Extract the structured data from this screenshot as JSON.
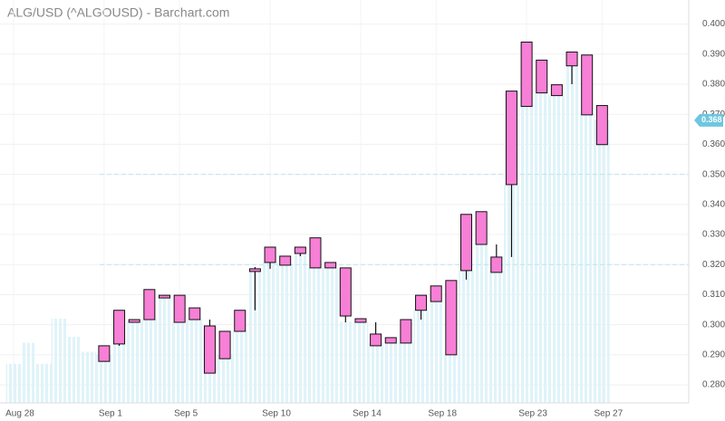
{
  "chart_data": {
    "type": "candlestick",
    "title": "ALG/USD (^ALGOUSD) - Barchart.com",
    "categories": [
      "Aug 28",
      null,
      null,
      null,
      null,
      null,
      "Sep 1",
      null,
      null,
      null,
      null,
      "Sep 5",
      null,
      null,
      null,
      null,
      null,
      "Sep 10",
      null,
      null,
      null,
      null,
      null,
      "Sep 14",
      null,
      null,
      null,
      null,
      "Sep 18",
      null,
      null,
      null,
      null,
      null,
      "Sep 23",
      null,
      null,
      null,
      null,
      "Sep 27"
    ],
    "open": [
      null,
      null,
      null,
      null,
      null,
      null,
      0.293,
      0.2936,
      0.3008,
      0.3017,
      0.3089,
      0.3098,
      0.3056,
      0.2996,
      0.2887,
      0.2978,
      0.3177,
      0.3207,
      0.3228,
      0.3237,
      0.3289,
      0.3207,
      0.3189,
      0.302,
      0.2969,
      0.2939,
      0.2939,
      0.3048,
      0.3077,
      0.29,
      0.318,
      0.3376,
      0.3174,
      0.3466,
      0.394,
      0.388,
      0.3762,
      0.3861,
      0.3897,
      0.3729
    ],
    "close": [
      null,
      null,
      null,
      null,
      null,
      null,
      0.2878,
      0.3048,
      0.3017,
      0.3117,
      0.3098,
      0.3008,
      0.3017,
      0.2839,
      0.2978,
      0.3048,
      0.3186,
      0.3258,
      0.3198,
      0.3258,
      0.3189,
      0.3189,
      0.3029,
      0.3008,
      0.293,
      0.2957,
      0.3017,
      0.3098,
      0.3129,
      0.3147,
      0.3367,
      0.3267,
      0.3225,
      0.3777,
      0.3726,
      0.3771,
      0.3798,
      0.3907,
      0.3698,
      0.3599
    ],
    "high": [
      null,
      null,
      null,
      null,
      null,
      null,
      0.293,
      0.3048,
      0.3017,
      0.3117,
      0.3098,
      0.3098,
      0.3056,
      0.3017,
      0.2978,
      0.3048,
      0.3192,
      0.3258,
      0.3228,
      0.3258,
      0.3289,
      0.3207,
      0.3189,
      0.302,
      0.3008,
      0.2957,
      0.3017,
      0.3098,
      0.3129,
      0.3147,
      0.3367,
      0.3376,
      0.3267,
      0.3777,
      0.394,
      0.388,
      0.3798,
      0.3907,
      0.3897,
      0.3729
    ],
    "low": [
      null,
      null,
      null,
      null,
      null,
      null,
      0.2878,
      0.293,
      0.3008,
      0.3017,
      0.3089,
      0.3008,
      0.3017,
      0.2839,
      0.2887,
      0.2978,
      0.3048,
      0.3186,
      0.3198,
      0.3228,
      0.3189,
      0.3189,
      0.3008,
      0.3008,
      0.293,
      0.2939,
      0.2939,
      0.3017,
      0.3077,
      0.29,
      0.315,
      0.3267,
      0.3174,
      0.3225,
      0.3726,
      0.3771,
      0.3762,
      0.38,
      0.3698,
      0.3599
    ],
    "background_values": [
      0.287,
      0.294,
      0.287,
      0.302,
      0.296,
      0.291,
      0.29,
      0.294,
      0.301,
      0.302,
      0.309,
      0.301,
      0.302,
      0.287,
      0.29,
      0.298,
      0.318,
      0.321,
      0.32,
      0.324,
      0.319,
      0.319,
      0.301,
      0.301,
      0.294,
      0.294,
      0.294,
      0.305,
      0.308,
      0.29,
      0.318,
      0.327,
      0.318,
      0.347,
      0.373,
      0.377,
      0.376,
      0.386,
      0.37,
      0.368
    ],
    "candle_color": "#f77fd6",
    "background_color": "#dff3f9",
    "reference_lines": [
      0.35,
      0.32
    ],
    "last_value": 0.368,
    "last_label": "0.368",
    "last_color": "#6ec6e0",
    "ylim": [
      0.274,
      0.408
    ],
    "yticks": [
      {
        "value": 0.28,
        "label": "0.280"
      },
      {
        "value": 0.29,
        "label": "0.290"
      },
      {
        "value": 0.3,
        "label": "0.300"
      },
      {
        "value": 0.31,
        "label": "0.310"
      },
      {
        "value": 0.32,
        "label": "0.320"
      },
      {
        "value": 0.33,
        "label": "0.330"
      },
      {
        "value": 0.34,
        "label": "0.340"
      },
      {
        "value": 0.35,
        "label": "0.350"
      },
      {
        "value": 0.36,
        "label": "0.360"
      },
      {
        "value": 0.37,
        "label": "0.370"
      },
      {
        "value": 0.38,
        "label": "0.380"
      },
      {
        "value": 0.39,
        "label": "0.390"
      },
      {
        "value": 0.4,
        "label": "0.400"
      }
    ],
    "grid": true
  }
}
